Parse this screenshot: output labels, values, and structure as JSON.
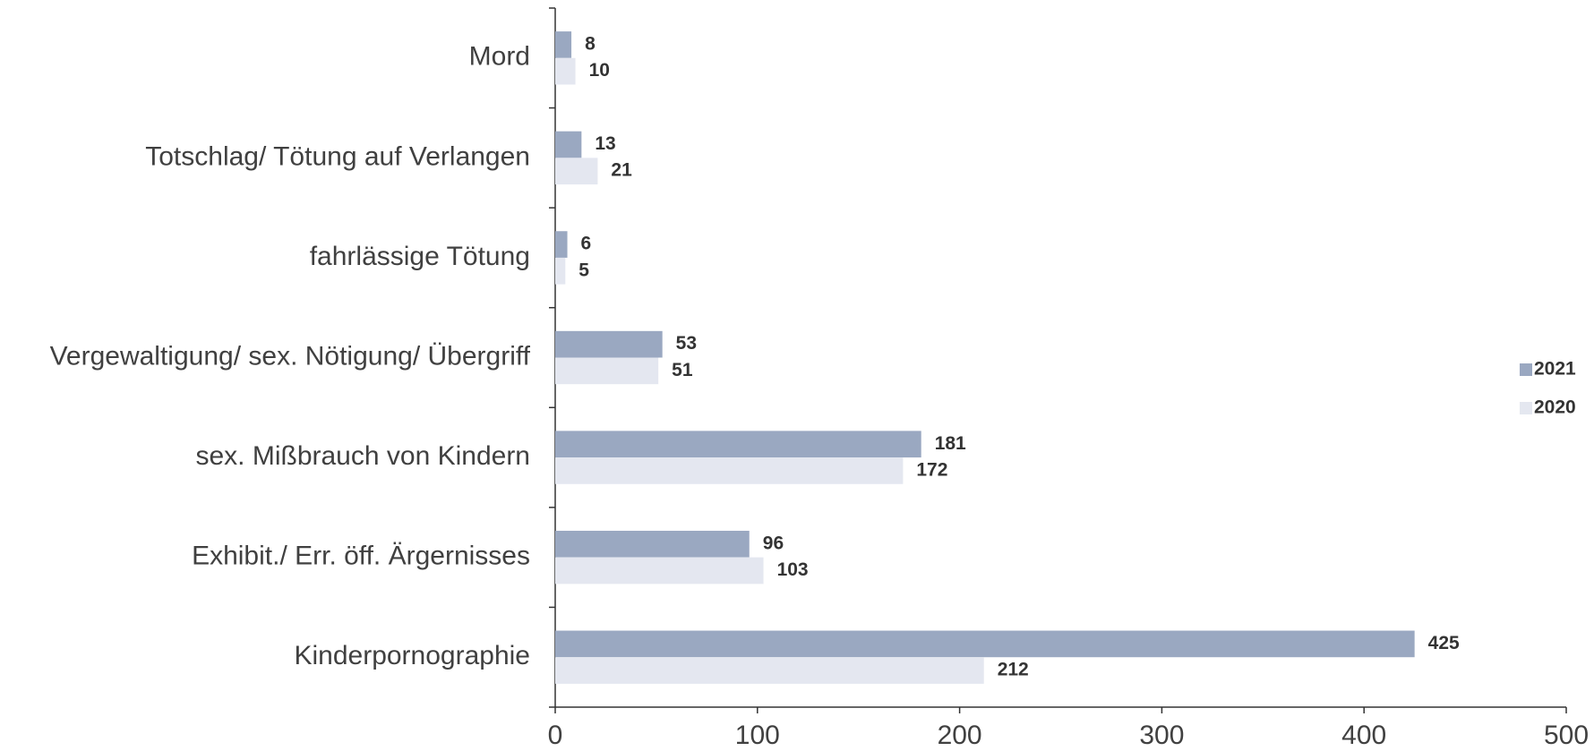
{
  "chart_data": {
    "type": "hbar",
    "categories": [
      "Mord",
      "Totschlag/ Tötung auf Verlangen",
      "fahrlässige Tötung",
      "Vergewaltigung/ sex. Nötigung/ Übergriff",
      "sex. Mißbrauch von Kindern",
      "Exhibit./ Err. öff. Ärgernisses",
      "Kinderpornographie"
    ],
    "series": [
      {
        "name": "2021",
        "color": "#9aa8c1",
        "values": [
          8,
          13,
          6,
          53,
          181,
          96,
          425
        ]
      },
      {
        "name": "2020",
        "color": "#e4e7f0",
        "values": [
          10,
          21,
          5,
          51,
          172,
          103,
          212
        ]
      }
    ],
    "xlim": [
      0,
      500
    ],
    "xticks": [
      0,
      100,
      200,
      300,
      400,
      500
    ],
    "legend": "right"
  }
}
